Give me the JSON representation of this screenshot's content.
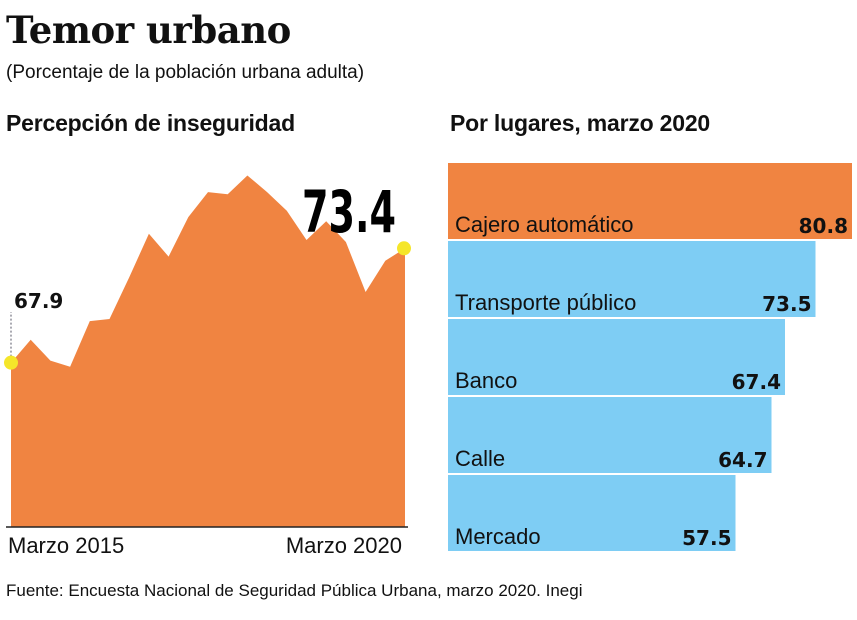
{
  "title": "Temor urbano",
  "subtitle": "(Porcentaje de la población urbana adulta)",
  "source": "Fuente: Encuesta Nacional de Seguridad Pública Urbana, marzo 2020. Inegi",
  "chart_data": [
    {
      "type": "area",
      "title": "Percepción de inseguridad",
      "x_tick_labels": [
        "Marzo 2015",
        "Marzo 2020"
      ],
      "values": [
        67.9,
        69.0,
        68.0,
        67.7,
        69.9,
        70.0,
        72.0,
        74.1,
        73.0,
        74.9,
        76.1,
        76.0,
        76.9,
        76.1,
        75.2,
        73.8,
        74.7,
        73.7,
        71.3,
        72.8,
        73.4
      ],
      "ylim": [
        60,
        77.5
      ],
      "annotations": {
        "start": "67.9",
        "end": "73.4"
      },
      "color": "#f08441",
      "marker_color": "#f5e62a",
      "grid": false
    },
    {
      "type": "bar",
      "orientation": "horizontal",
      "title": "Por lugares, marzo 2020",
      "categories": [
        "Cajero automático",
        "Transporte público",
        "Banco",
        "Calle",
        "Mercado"
      ],
      "values": [
        80.8,
        73.5,
        67.4,
        64.7,
        57.5
      ],
      "value_labels": [
        "80.8",
        "73.5",
        "67.4",
        "64.7",
        "57.5"
      ],
      "colors": [
        "#f08441",
        "#7ecdf4",
        "#7ecdf4",
        "#7ecdf4",
        "#7ecdf4"
      ],
      "xlim": [
        0,
        80.8
      ]
    }
  ]
}
